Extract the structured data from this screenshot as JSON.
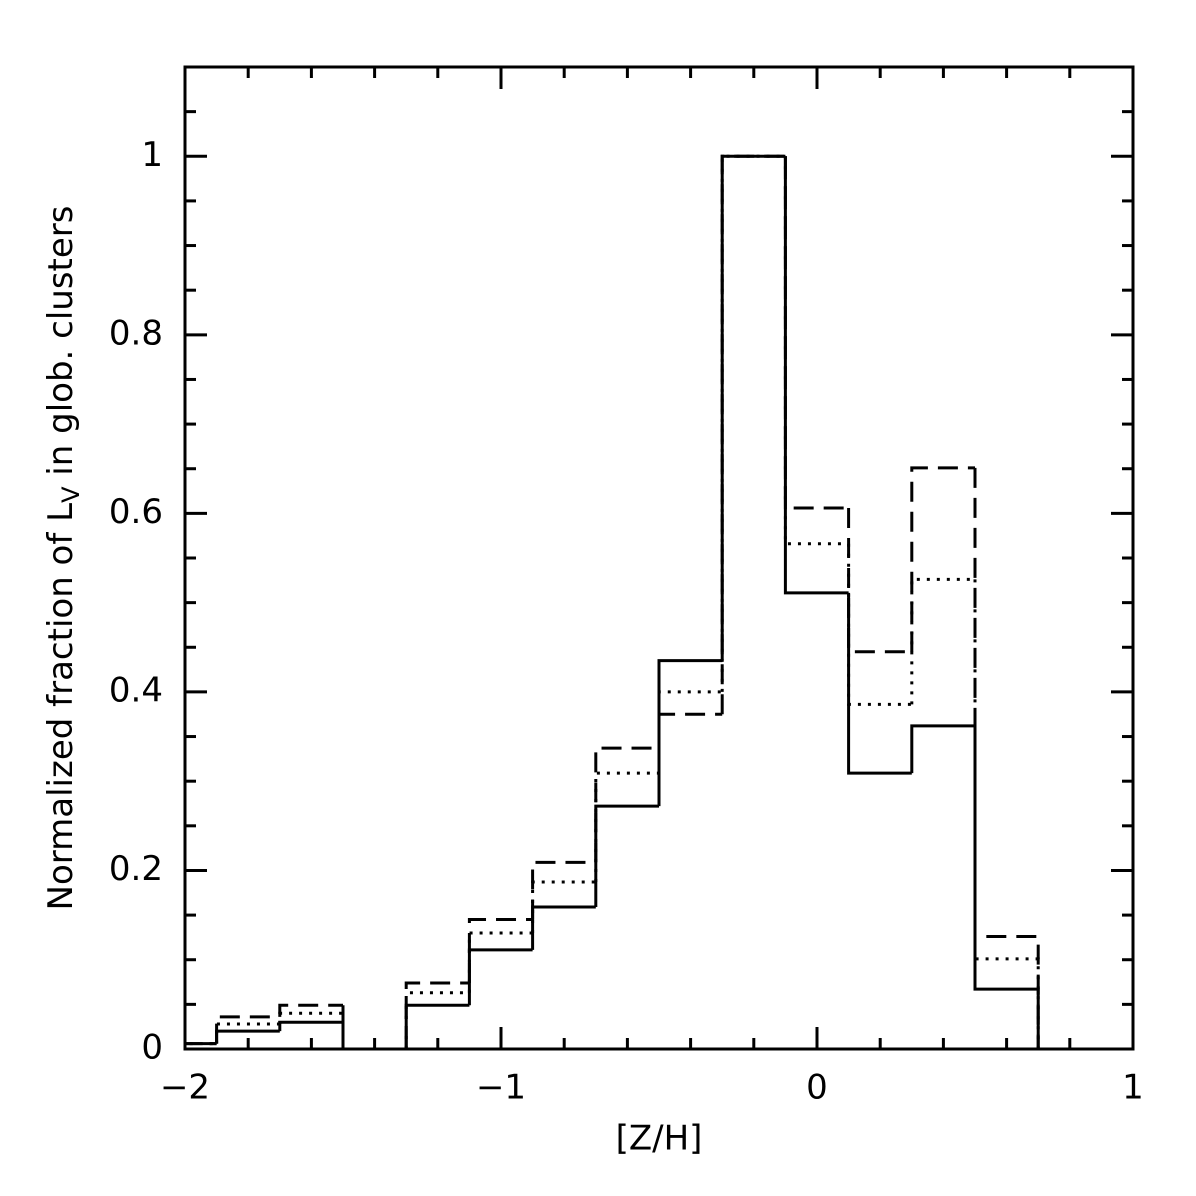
{
  "chart_data": {
    "type": "step-histogram",
    "xlabel": "[Z/H]",
    "ylabel": [
      "Normalized fraction of L",
      "V",
      " in glob. clusters"
    ],
    "bins": [
      -2,
      -1.9,
      -1.7,
      -1.5,
      -1.3,
      -1.1,
      -0.9,
      -0.7,
      -0.5,
      -0.3,
      -0.1,
      0.1,
      0.3,
      0.5,
      0.7
    ],
    "series": [
      {
        "color": "#000000",
        "style": "solid",
        "values": [
          0.006,
          0.02,
          0.03,
          0,
          0.049,
          0.111,
          0.159,
          0.272,
          0.435,
          1.0,
          0.511,
          0.309,
          0.362,
          0.067
        ]
      },
      {
        "color": "#000000",
        "style": "dashed",
        "values": [
          0.006,
          0.036,
          0.049,
          0,
          0.074,
          0.145,
          0.209,
          0.337,
          0.375,
          1.0,
          0.606,
          0.445,
          0.651,
          0.126
        ]
      },
      {
        "color": "#000000",
        "style": "dotted",
        "values": [
          0.006,
          0.028,
          0.04,
          0,
          0.063,
          0.13,
          0.187,
          0.309,
          0.4,
          1.0,
          0.566,
          0.386,
          0.526,
          0.101
        ]
      }
    ],
    "xlim": [
      -2,
      1
    ],
    "xticks": [
      {
        "value": -2,
        "label": "−2"
      },
      {
        "value": -1,
        "label": "−1"
      },
      0,
      1
    ],
    "ylim": [
      0,
      1.1
    ],
    "yticks": [
      0,
      0.2,
      0.4,
      0.6,
      0.8,
      1
    ]
  }
}
